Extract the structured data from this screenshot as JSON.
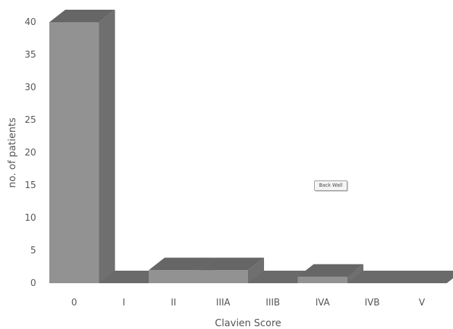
{
  "chart_data": {
    "type": "bar",
    "style": "3d",
    "categories": [
      "0",
      "I",
      "II",
      "IIIA",
      "IIIB",
      "IVA",
      "IVB",
      "V"
    ],
    "values": [
      40,
      0,
      2,
      2,
      0,
      1,
      0,
      0
    ],
    "title": "",
    "xlabel": "Clavien Score",
    "ylabel": "no. of patients",
    "ylim": [
      0,
      40
    ],
    "yticks": [
      0,
      5,
      10,
      15,
      20,
      25,
      30,
      35,
      40
    ],
    "grid": false,
    "legend": "none",
    "colors": {
      "front": "#929292",
      "side": "#6f6f6f",
      "top": "#666666",
      "floor": "#6a6a6a"
    }
  },
  "annotations": {
    "hover_label": "Back Wall"
  }
}
